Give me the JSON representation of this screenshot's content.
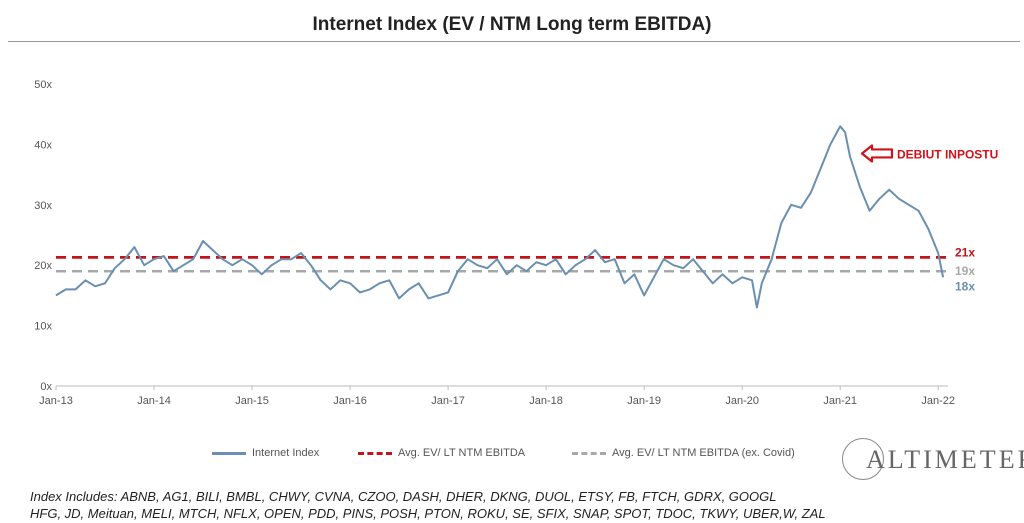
{
  "chart_data": {
    "type": "line",
    "title": "Internet Index (EV / NTM Long term EBITDA)",
    "y_tick_labels": [
      "0x",
      "10x",
      "20x",
      "30x",
      "40x",
      "50x"
    ],
    "ylim": [
      0,
      50
    ],
    "x_tick_labels": [
      "Jan-13",
      "Jan-14",
      "Jan-15",
      "Jan-16",
      "Jan-17",
      "Jan-18",
      "Jan-19",
      "Jan-20",
      "Jan-21",
      "Jan-22"
    ],
    "xlim": [
      2013.0,
      2022.1
    ],
    "grid": false,
    "legend_position": "bottom",
    "series": [
      {
        "name": "Internet Index",
        "color": "#6a8fb0",
        "x": [
          2013.0,
          2013.1,
          2013.2,
          2013.3,
          2013.4,
          2013.5,
          2013.6,
          2013.7,
          2013.8,
          2013.9,
          2014.0,
          2014.1,
          2014.2,
          2014.3,
          2014.4,
          2014.5,
          2014.6,
          2014.7,
          2014.8,
          2014.9,
          2015.0,
          2015.1,
          2015.2,
          2015.3,
          2015.4,
          2015.5,
          2015.6,
          2015.7,
          2015.8,
          2015.9,
          2016.0,
          2016.1,
          2016.2,
          2016.3,
          2016.4,
          2016.5,
          2016.6,
          2016.7,
          2016.8,
          2016.9,
          2017.0,
          2017.1,
          2017.2,
          2017.3,
          2017.4,
          2017.5,
          2017.6,
          2017.7,
          2017.8,
          2017.9,
          2018.0,
          2018.1,
          2018.2,
          2018.3,
          2018.4,
          2018.5,
          2018.6,
          2018.7,
          2018.8,
          2018.9,
          2019.0,
          2019.1,
          2019.2,
          2019.3,
          2019.4,
          2019.5,
          2019.6,
          2019.7,
          2019.8,
          2019.9,
          2020.0,
          2020.1,
          2020.15,
          2020.2,
          2020.3,
          2020.4,
          2020.5,
          2020.6,
          2020.7,
          2020.8,
          2020.9,
          2021.0,
          2021.05,
          2021.1,
          2021.2,
          2021.3,
          2021.4,
          2021.5,
          2021.6,
          2021.7,
          2021.8,
          2021.9,
          2022.0,
          2022.05
        ],
        "values": [
          15,
          16,
          16,
          17.5,
          16.5,
          17,
          19.5,
          21,
          23,
          20,
          21,
          21.5,
          19,
          20,
          21,
          24,
          22.5,
          21,
          20,
          21,
          20,
          18.5,
          20,
          21,
          21,
          22,
          20,
          17.5,
          16,
          17.5,
          17,
          15.5,
          16,
          17,
          17.5,
          14.5,
          16,
          17,
          14.5,
          15,
          15.5,
          19,
          21,
          20,
          19.5,
          21,
          18.5,
          20,
          19,
          20.5,
          20,
          21,
          18.5,
          20,
          21,
          22.5,
          20.5,
          21,
          17,
          18.5,
          15,
          18,
          21,
          20,
          19.5,
          21,
          19,
          17,
          18.5,
          17,
          18,
          17.5,
          13,
          17,
          21,
          27,
          30,
          29.5,
          32,
          36,
          40,
          43,
          42,
          38,
          33,
          29,
          31,
          32.5,
          31,
          30,
          29,
          26,
          22,
          18
        ]
      },
      {
        "name": "Avg. EV/ LT NTM EBITDA",
        "color": "#c0141c",
        "constant": 21.3,
        "end_label": "21x"
      },
      {
        "name": "Avg. EV/ LT NTM EBITDA (ex. Covid)",
        "color": "#a8a8a8",
        "constant": 19,
        "end_label": "19x"
      }
    ],
    "last_value_label": "18x",
    "annotation": {
      "text": "DEBIUT INPOSTU",
      "color": "#d0121a",
      "x": 2021.1,
      "y": 38.5
    }
  },
  "legend": {
    "internet_index": "Internet Index",
    "avg": "Avg. EV/ LT NTM EBITDA",
    "avg_ex_covid": "Avg. EV/ LT NTM EBITDA (ex. Covid)"
  },
  "logo_text": "ALTIMETER",
  "footnote_line1": "Index Includes: ABNB, AG1, BILI, BMBL, CHWY, CVNA, CZOO, DASH, DHER, DKNG, DUOL, ETSY, FB, FTCH, GDRX, GOOGL",
  "footnote_line2": "HFG, JD, Meituan, MELI, MTCH, NFLX, OPEN, PDD, PINS, POSH, PTON, ROKU, SE, SFIX, SNAP, SPOT, TDOC, TKWY, UBER,W, ZAL"
}
